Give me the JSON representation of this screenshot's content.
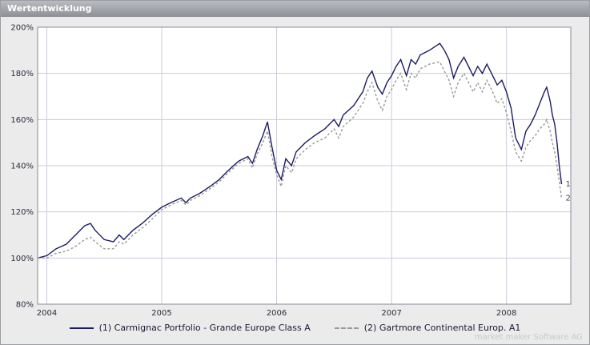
{
  "header": {
    "title": "Wertentwicklung"
  },
  "footer": {
    "watermark": "market maker Software AG"
  },
  "chart_data": {
    "type": "line",
    "title": "Wertentwicklung",
    "xlabel": "",
    "ylabel": "",
    "xlim": [
      2003.92,
      2008.56
    ],
    "ylim": [
      80,
      200
    ],
    "grid": true,
    "legend_position": "bottom",
    "background": "#ffffff",
    "grid_color": "#ccccdd",
    "border_color": "#8a8a94",
    "y_ticks": [
      80,
      100,
      120,
      140,
      160,
      180,
      200
    ],
    "y_tick_labels": [
      "80%",
      "100%",
      "120%",
      "140%",
      "160%",
      "180%",
      "200%"
    ],
    "x_ticks": [
      2004,
      2005,
      2006,
      2007,
      2008
    ],
    "x_tick_labels": [
      "2004",
      "2005",
      "2006",
      "2007",
      "2008"
    ],
    "x": [
      2003.92,
      2004.0,
      2004.08,
      2004.17,
      2004.25,
      2004.33,
      2004.38,
      2004.42,
      2004.5,
      2004.58,
      2004.63,
      2004.67,
      2004.75,
      2004.83,
      2004.92,
      2005.0,
      2005.08,
      2005.17,
      2005.21,
      2005.25,
      2005.33,
      2005.42,
      2005.5,
      2005.58,
      2005.67,
      2005.75,
      2005.79,
      2005.83,
      2005.88,
      2005.92,
      2005.96,
      2006.0,
      2006.04,
      2006.08,
      2006.13,
      2006.17,
      2006.25,
      2006.33,
      2006.42,
      2006.5,
      2006.54,
      2006.58,
      2006.67,
      2006.75,
      2006.79,
      2006.83,
      2006.88,
      2006.92,
      2006.96,
      2007.0,
      2007.04,
      2007.08,
      2007.13,
      2007.17,
      2007.21,
      2007.25,
      2007.33,
      2007.42,
      2007.46,
      2007.5,
      2007.54,
      2007.58,
      2007.63,
      2007.67,
      2007.71,
      2007.75,
      2007.79,
      2007.83,
      2007.88,
      2007.92,
      2007.96,
      2008.0,
      2008.04,
      2008.08,
      2008.13,
      2008.17,
      2008.21,
      2008.25,
      2008.29,
      2008.33,
      2008.35,
      2008.38,
      2008.4,
      2008.42,
      2008.44,
      2008.46,
      2008.48
    ],
    "series": [
      {
        "name": "(1) Carmignac Portfolio - Grande Europe Class A",
        "short_label": "1",
        "color": "#1c1c64",
        "line_style": "solid",
        "values": [
          100,
          101,
          104,
          106,
          110,
          114,
          115,
          112,
          108,
          107,
          110,
          108,
          112,
          115,
          119,
          122,
          124,
          126,
          124,
          126,
          128,
          131,
          134,
          138,
          142,
          144,
          141,
          147,
          153,
          159,
          148,
          138,
          134,
          143,
          140,
          146,
          150,
          153,
          156,
          160,
          157,
          162,
          166,
          172,
          178,
          181,
          174,
          171,
          176,
          179,
          183,
          186,
          179,
          186,
          184,
          188,
          190,
          193,
          190,
          186,
          178,
          183,
          187,
          183,
          179,
          183,
          180,
          184,
          179,
          175,
          177,
          172,
          165,
          152,
          147,
          155,
          158,
          162,
          167,
          172,
          174,
          168,
          162,
          158,
          150,
          140,
          132
        ]
      },
      {
        "name": "(2) Gartmore Continental Europ. A1",
        "short_label": "2",
        "color": "#999999",
        "line_style": "dotted",
        "values": [
          100,
          100,
          102,
          103,
          105,
          108,
          109,
          107,
          104,
          104,
          107,
          106,
          110,
          113,
          117,
          121,
          123,
          125,
          123,
          125,
          127,
          130,
          133,
          137,
          141,
          143,
          139,
          145,
          150,
          155,
          144,
          136,
          131,
          140,
          137,
          143,
          147,
          150,
          152,
          156,
          152,
          157,
          161,
          167,
          172,
          176,
          168,
          164,
          170,
          173,
          177,
          180,
          173,
          180,
          178,
          182,
          184,
          185,
          181,
          177,
          170,
          176,
          180,
          176,
          172,
          176,
          172,
          177,
          172,
          167,
          169,
          163,
          155,
          146,
          142,
          148,
          151,
          153,
          156,
          158,
          160,
          155,
          150,
          146,
          140,
          133,
          126
        ]
      }
    ]
  }
}
